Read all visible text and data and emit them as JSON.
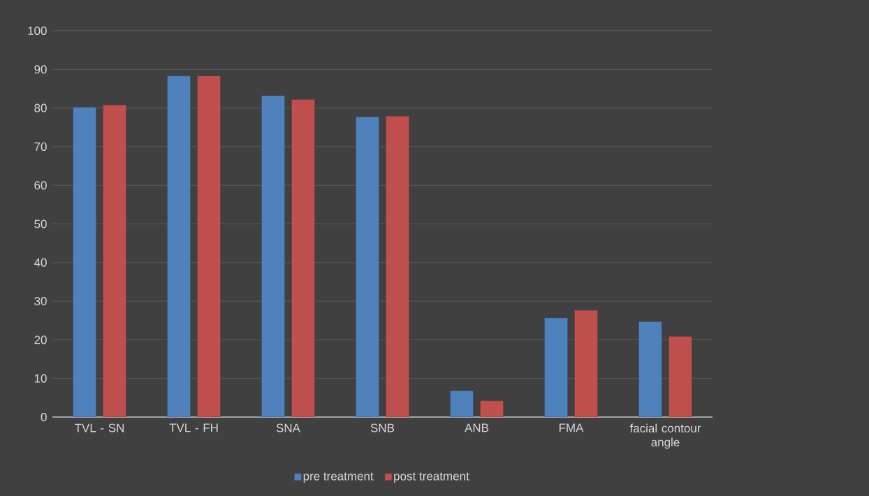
{
  "chart_data": {
    "type": "bar",
    "categories": [
      "TVL - SN",
      "TVL - FH",
      "SNA",
      "SNB",
      "ANB",
      "FMA",
      "facial contour angle"
    ],
    "series": [
      {
        "name": "pre treatment",
        "color": "#4f81bd",
        "values": [
          80.2,
          88.3,
          83.2,
          77.7,
          6.8,
          25.7,
          24.7
        ]
      },
      {
        "name": "post treatment",
        "color": "#c0504d",
        "values": [
          80.8,
          88.3,
          82.2,
          77.9,
          4.2,
          27.6,
          20.9
        ]
      }
    ],
    "ylim": [
      0,
      100
    ],
    "yticks": [
      0,
      10,
      20,
      30,
      40,
      50,
      60,
      70,
      80,
      90,
      100
    ],
    "grid": "y",
    "legend": "bottom"
  }
}
